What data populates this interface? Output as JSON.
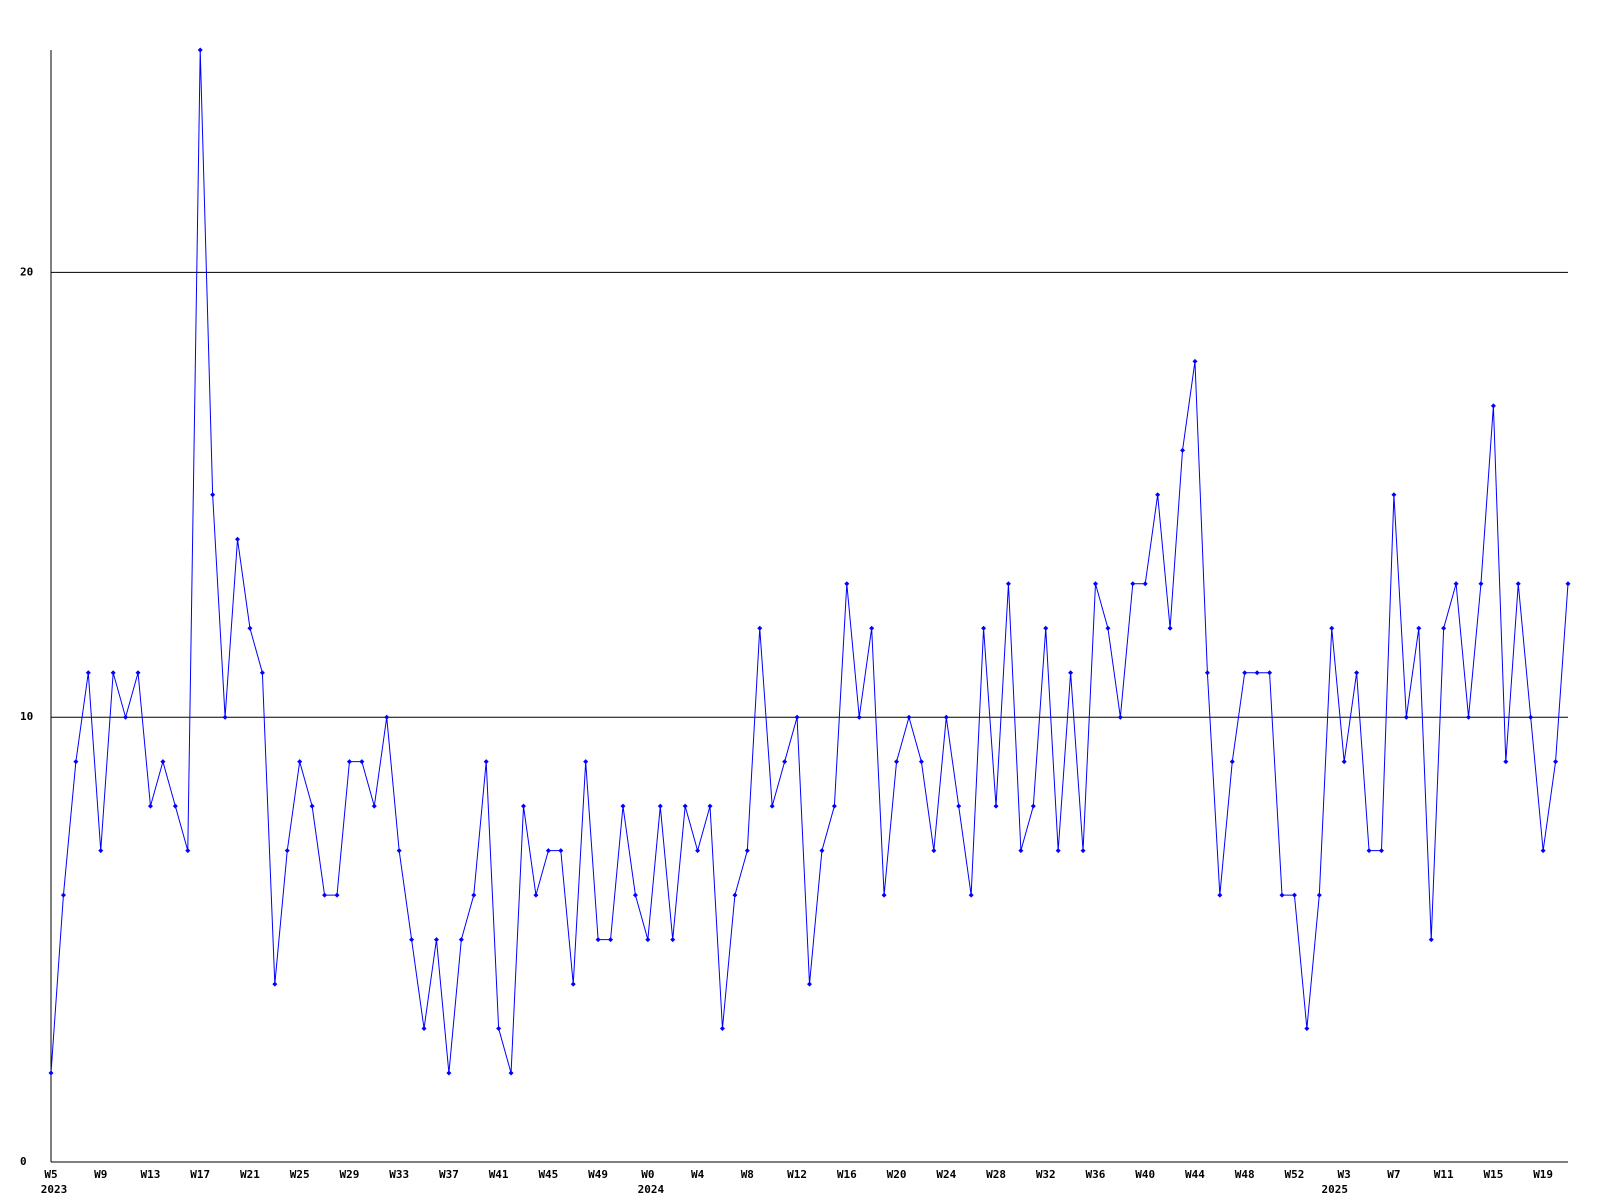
{
  "chart_data": {
    "type": "line",
    "categories": [
      "W5",
      null,
      null,
      null,
      "W9",
      null,
      null,
      null,
      "W13",
      null,
      null,
      null,
      "W17",
      null,
      null,
      null,
      "W21",
      null,
      null,
      null,
      "W25",
      null,
      null,
      null,
      "W29",
      null,
      null,
      null,
      "W33",
      null,
      null,
      null,
      "W37",
      null,
      null,
      null,
      "W41",
      null,
      null,
      null,
      "W45",
      null,
      null,
      null,
      "W49",
      null,
      null,
      null,
      "W0",
      null,
      null,
      null,
      "W4",
      null,
      null,
      null,
      "W8",
      null,
      null,
      null,
      "W12",
      null,
      null,
      null,
      "W16",
      null,
      null,
      null,
      "W20",
      null,
      null,
      null,
      "W24",
      null,
      null,
      null,
      "W28",
      null,
      null,
      null,
      "W32",
      null,
      null,
      null,
      "W36",
      null,
      null,
      null,
      "W40",
      null,
      null,
      null,
      "W44",
      null,
      null,
      null,
      "W48",
      null,
      null,
      null,
      "W52",
      null,
      null,
      null,
      "W3",
      null,
      null,
      null,
      "W7",
      null,
      null,
      null,
      "W11",
      null,
      null,
      null,
      "W15",
      null,
      null,
      null,
      "W19",
      null,
      null
    ],
    "category_years": [
      "2023",
      null,
      null,
      null,
      null,
      null,
      null,
      null,
      null,
      null,
      null,
      null,
      null,
      null,
      null,
      null,
      null,
      null,
      null,
      null,
      null,
      null,
      null,
      null,
      null,
      null,
      null,
      null,
      null,
      null,
      null,
      null,
      null,
      null,
      null,
      null,
      null,
      null,
      null,
      null,
      null,
      null,
      null,
      null,
      null,
      null,
      null,
      null,
      "2024",
      null,
      null,
      null,
      null,
      null,
      null,
      null,
      null,
      null,
      null,
      null,
      null,
      null,
      null,
      null,
      null,
      null,
      null,
      null,
      null,
      null,
      null,
      null,
      null,
      null,
      null,
      null,
      null,
      null,
      null,
      null,
      null,
      null,
      null,
      null,
      null,
      null,
      null,
      null,
      null,
      null,
      null,
      null,
      null,
      null,
      null,
      null,
      null,
      null,
      null,
      null,
      null,
      null,
      null,
      "2025",
      null,
      null,
      null,
      null,
      null,
      null,
      null,
      null,
      null,
      null,
      null,
      null,
      null,
      null,
      null,
      null,
      null,
      null,
      null,
      null,
      null
    ],
    "values": [
      2,
      6,
      9,
      11,
      7,
      11,
      10,
      11,
      8,
      9,
      8,
      7,
      25,
      15,
      10,
      14,
      12,
      11,
      4,
      7,
      9,
      8,
      6,
      6,
      9,
      9,
      8,
      10,
      7,
      5,
      3,
      5,
      2,
      5,
      6,
      9,
      3,
      2,
      8,
      6,
      7,
      7,
      4,
      9,
      5,
      5,
      8,
      6,
      5,
      8,
      5,
      8,
      7,
      8,
      3,
      6,
      7,
      12,
      8,
      9,
      10,
      4,
      7,
      8,
      13,
      10,
      12,
      6,
      9,
      10,
      9,
      7,
      10,
      8,
      6,
      12,
      8,
      13,
      7,
      8,
      12,
      7,
      11,
      7,
      13,
      12,
      10,
      13,
      13,
      15,
      12,
      16,
      18,
      11,
      6,
      9,
      11,
      11,
      11,
      6,
      6,
      3,
      6,
      12,
      9,
      11,
      7,
      7,
      15,
      10,
      12,
      5,
      12,
      13,
      10,
      13,
      17,
      9,
      13,
      10,
      7,
      9,
      13
    ],
    "color": "#0000ff",
    "grid_color": "#000000",
    "ylim": [
      0,
      25
    ],
    "yticks": [
      0,
      10,
      20
    ],
    "grid": true
  }
}
